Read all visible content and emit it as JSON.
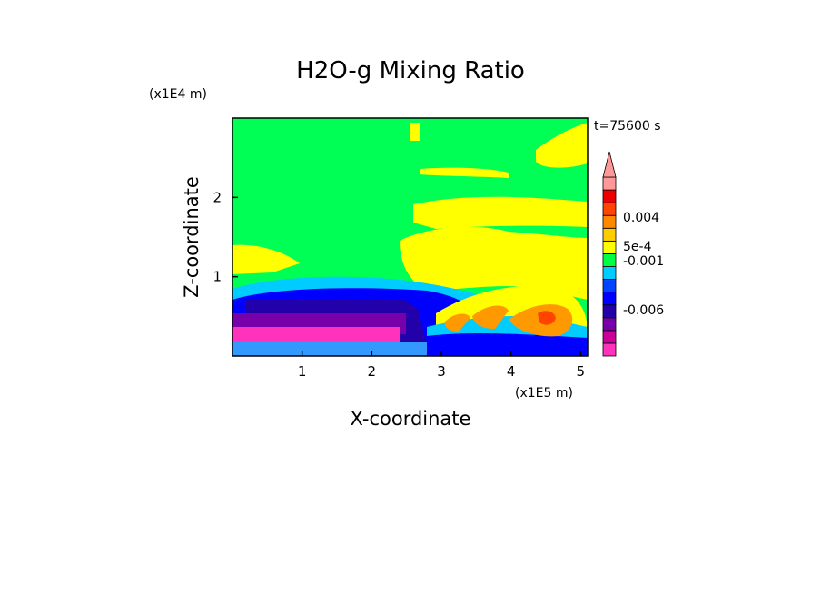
{
  "chart_data": {
    "type": "heatmap",
    "title": "H2O-g Mixing Ratio",
    "xlabel": "X-coordinate",
    "ylabel": "Z-coordinate",
    "x_scale_label": "(x1E5 m)",
    "y_scale_label": "(x1E4 m)",
    "time_label": "t=75600 s",
    "x_ticks": [
      "1",
      "2",
      "3",
      "4",
      "5"
    ],
    "y_ticks": [
      "1",
      "2"
    ],
    "xlim": [
      0,
      5.1
    ],
    "ylim": [
      0,
      3.0
    ],
    "colorbar": {
      "labels": [
        "0.004",
        "5e-4",
        "-0.001",
        "-0.006"
      ],
      "colors": [
        "#ff33bb",
        "#cc0099",
        "#7700aa",
        "#2200aa",
        "#0000ff",
        "#0044ff",
        "#00ccff",
        "#00ff44",
        "#ffff00",
        "#ffcc00",
        "#ff8800",
        "#ff4400",
        "#ee0000",
        "#ff9999"
      ]
    },
    "regions": [
      {
        "name": "upper-field",
        "color": "#00ff55",
        "x": [
          0,
          5.1
        ],
        "z": [
          0,
          3.0
        ]
      },
      {
        "name": "moist-band-upper",
        "color": "#ffff00",
        "x": [
          2.6,
          5.1
        ],
        "z": [
          0.9,
          2.3
        ]
      },
      {
        "name": "moist-top-right",
        "color": "#ffff00",
        "x": [
          4.4,
          5.1
        ],
        "z": [
          2.5,
          2.9
        ]
      },
      {
        "name": "low-cyan",
        "color": "#00ccff",
        "x": [
          0,
          4.0
        ],
        "z": [
          0.7,
          1.0
        ]
      },
      {
        "name": "low-blue",
        "color": "#0000ff",
        "x": [
          0,
          3.2
        ],
        "z": [
          0.1,
          0.7
        ]
      },
      {
        "name": "low-navy",
        "color": "#2200aa",
        "x": [
          0.1,
          2.9
        ],
        "z": [
          0.45,
          0.75
        ]
      },
      {
        "name": "low-purple",
        "color": "#7700aa",
        "x": [
          0,
          2.5
        ],
        "z": [
          0.3,
          0.55
        ]
      },
      {
        "name": "low-magenta",
        "color": "#ff33bb",
        "x": [
          0,
          2.4
        ],
        "z": [
          0.15,
          0.35
        ]
      },
      {
        "name": "storm-orange",
        "color": "#ff9900",
        "x": [
          3.2,
          5.0
        ],
        "z": [
          0.2,
          0.7
        ]
      }
    ]
  }
}
